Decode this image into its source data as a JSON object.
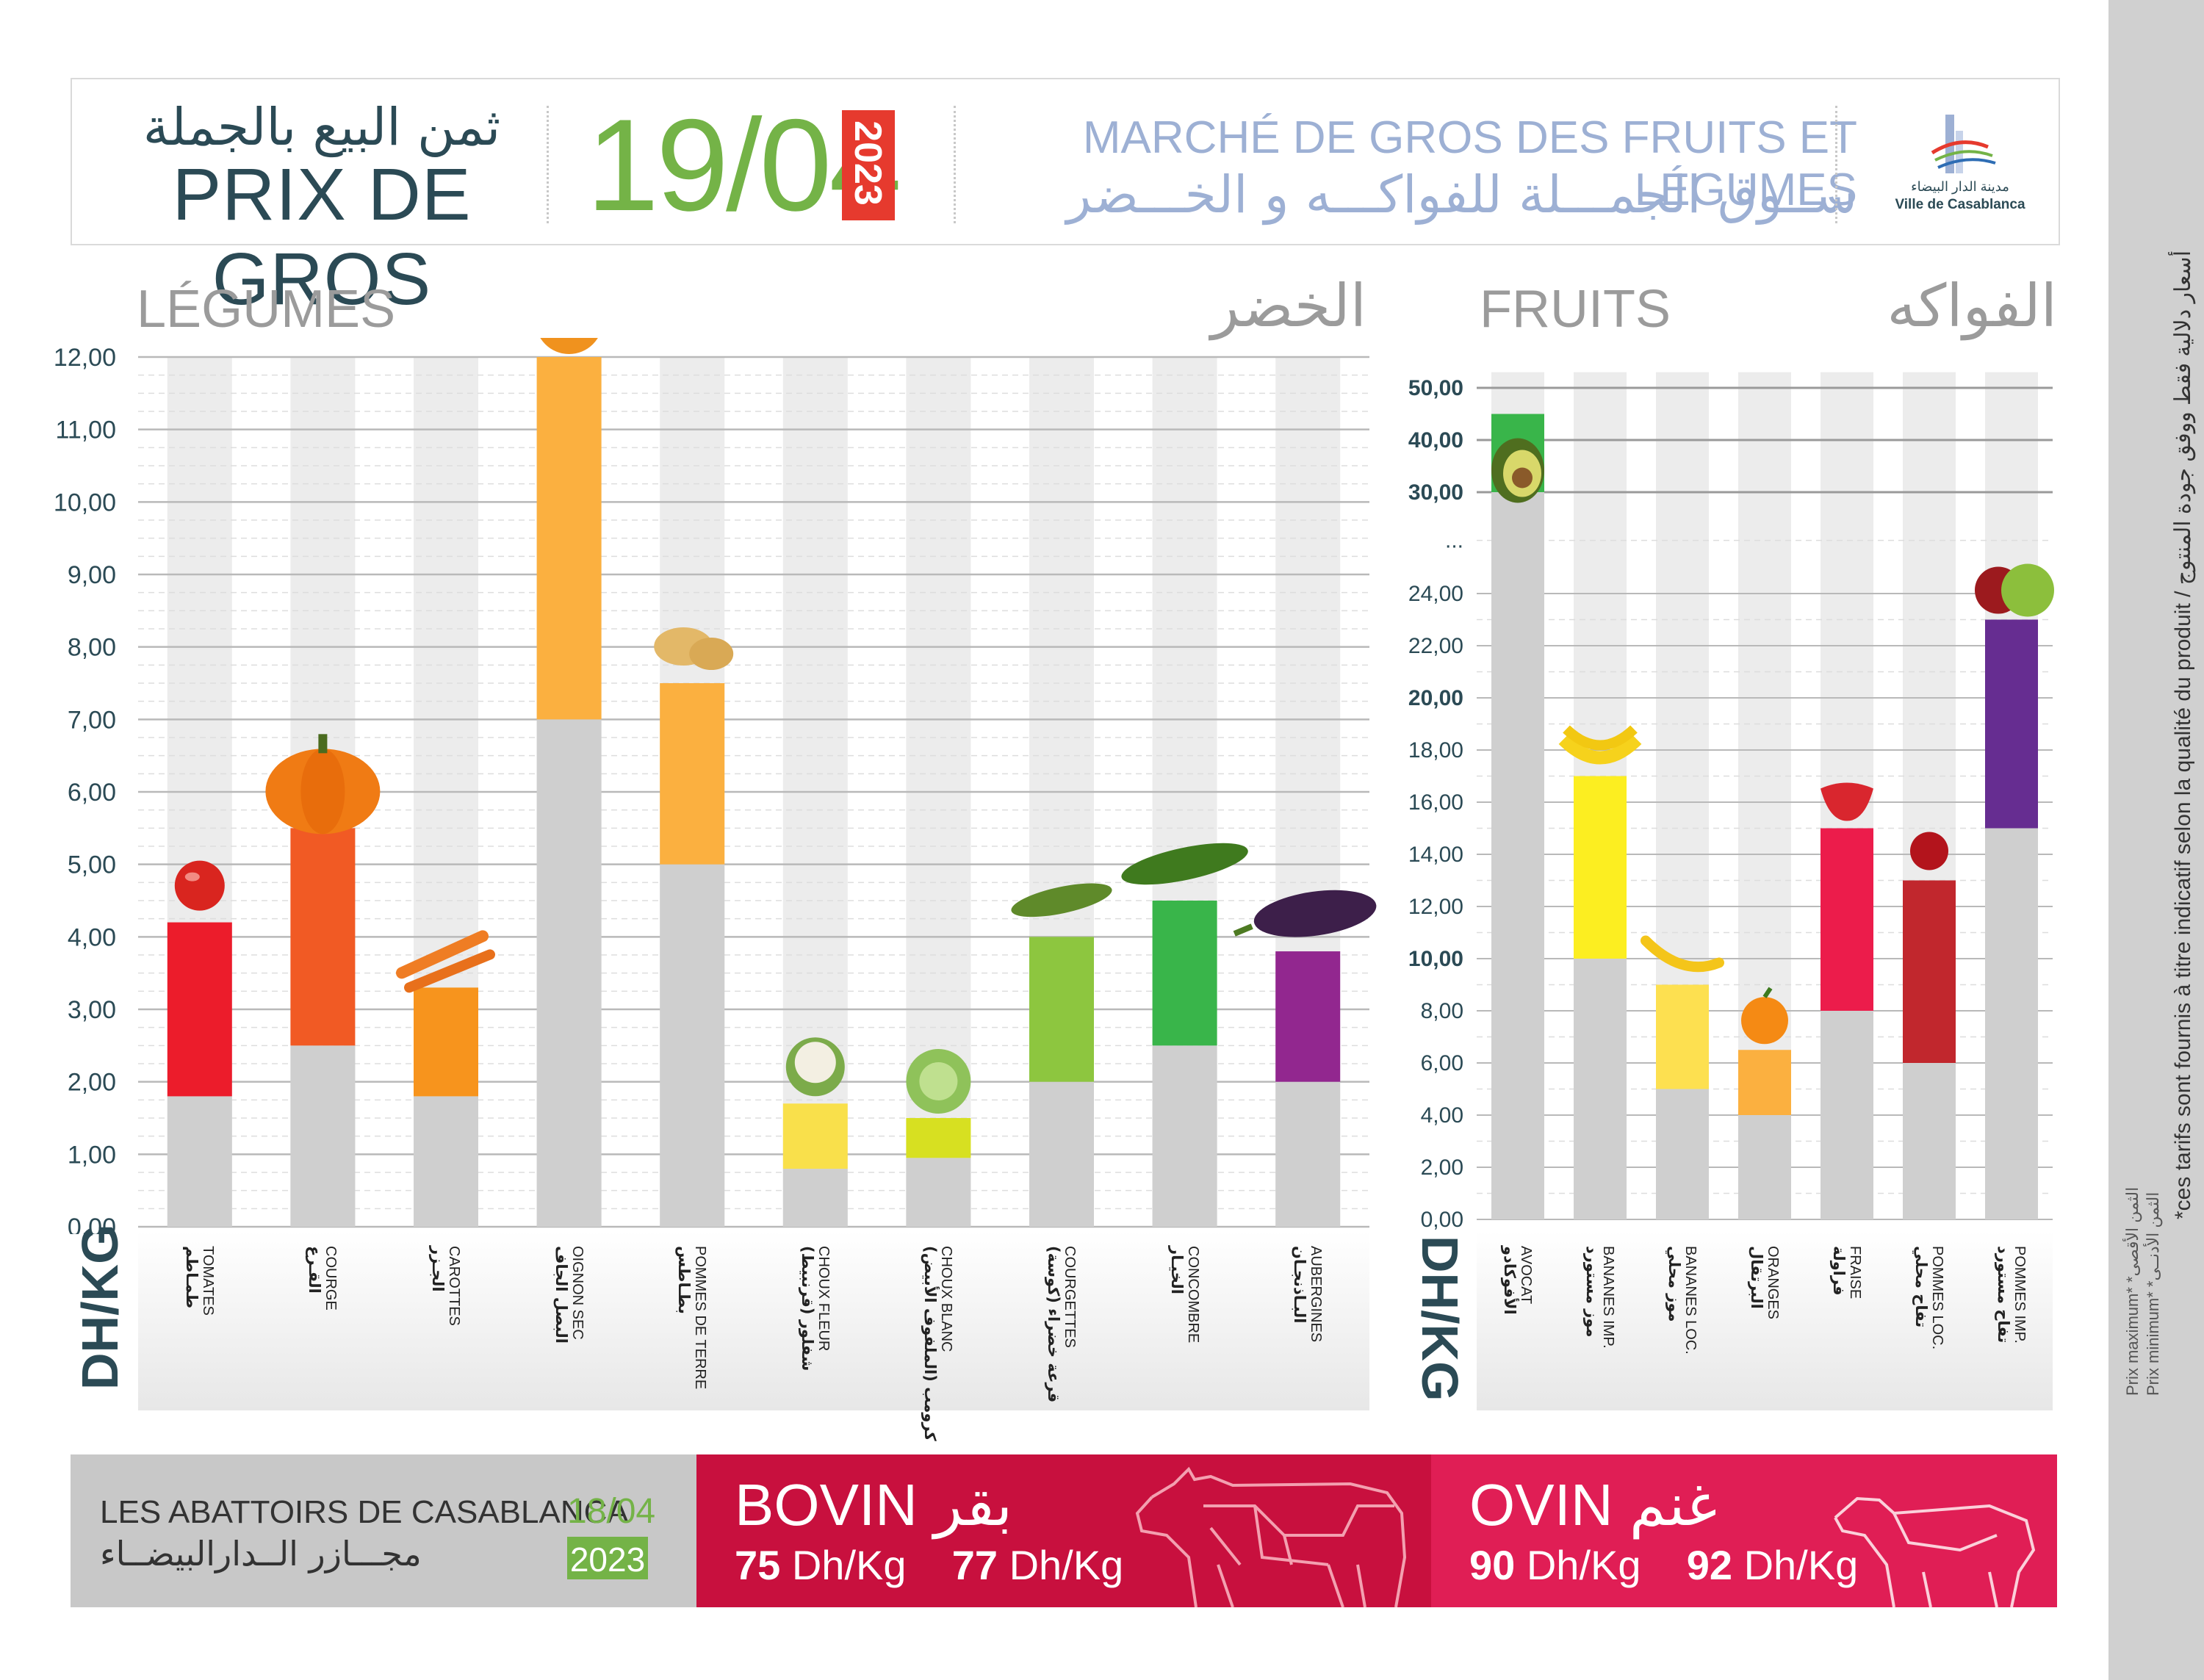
{
  "header": {
    "title_ar": "ثمن البيع بالجملة",
    "title_fr": "PRIX DE GROS",
    "date": "19/04",
    "year": "2023",
    "market_fr": "MARCHÉ DE GROS DES FRUITS ET LÉGUMES",
    "market_ar": "ســوق الجمـــلة للفواكـــه و الخـــضر",
    "logo_ar": "مدينة الدار البيضاء",
    "logo_fr": "Ville de Casablanca"
  },
  "legumes": {
    "title_fr": "LÉGUMES",
    "title_ar": "الخضر",
    "unit": "DH/KG"
  },
  "fruits": {
    "title_fr": "FRUITS",
    "title_ar": "الفواكه",
    "unit": "DH/KG"
  },
  "abattoirs": {
    "title_fr": "LES ABATTOIRS DE CASABLANCA",
    "title_ar": "مجـــازر الــدارالبيضــاء",
    "date": "18/04",
    "year": "2023"
  },
  "bovin": {
    "name_fr": "BOVIN",
    "name_ar": "بقر",
    "price_min_value": "75",
    "price_max_value": "77",
    "price_unit": "Dh/Kg"
  },
  "ovin": {
    "name_fr": "OVIN",
    "name_ar": "غنم",
    "price_min_value": "90",
    "price_max_value": "92",
    "price_unit": "Dh/Kg"
  },
  "side": {
    "note": "*ces tarifs sont fournis à titre indicatif selon la qualité du produit / أسعار دلالية فقط ووفق جودة المنتوج",
    "legend_max": "Prix maximum* *الثمن الأقصى",
    "legend_min": "Prix minimum* *الثمن الأدنــى"
  },
  "colors": {
    "min_bar": "#cfcfcf",
    "column_bg": "#ececec",
    "accent_green": "#74b347",
    "accent_red": "#e63a2e"
  },
  "chart_data": [
    {
      "type": "bar",
      "title": "LÉGUMES",
      "ylabel": "DH/KG",
      "ylim": [
        0,
        12
      ],
      "yticks": [
        "0,00",
        "1,00",
        "2,00",
        "3,00",
        "4,00",
        "5,00",
        "6,00",
        "7,00",
        "8,00",
        "9,00",
        "10,00",
        "11,00",
        "12,00"
      ],
      "categories": [
        {
          "fr": "TOMATES",
          "ar": "طمـاطم",
          "min": 1.8,
          "max": 4.2,
          "color": "#ec1c2b",
          "icon": "tomato-icon"
        },
        {
          "fr": "COURGE",
          "ar": "القـرع",
          "min": 2.5,
          "max": 5.5,
          "color": "#f15a24",
          "icon": "pumpkin-icon"
        },
        {
          "fr": "CAROTTES",
          "ar": "الجـزر",
          "min": 1.8,
          "max": 3.3,
          "color": "#f7941d",
          "icon": "carrot-icon"
        },
        {
          "fr": "OIGNON SEC",
          "ar": "البصل الجاف",
          "min": 7.0,
          "max": 12.0,
          "color": "#fbb040",
          "icon": "onion-icon"
        },
        {
          "fr": "POMMES DE TERRE",
          "ar": "بطـاطس",
          "min": 5.0,
          "max": 7.5,
          "color": "#fbb040",
          "icon": "potato-icon"
        },
        {
          "fr": "CHOUX FLEUR",
          "ar": "شفلور (قرنبيط)",
          "min": 0.8,
          "max": 1.7,
          "color": "#f9e04b",
          "icon": "cauliflower-icon"
        },
        {
          "fr": "CHOUX BLANC",
          "ar": "كرومب (الملفوف الأبيض)",
          "min": 0.95,
          "max": 1.5,
          "color": "#d7e021",
          "icon": "cabbage-icon"
        },
        {
          "fr": "COURGETTES",
          "ar": "قرعة خضراء (كوسة)",
          "min": 2.0,
          "max": 4.0,
          "color": "#8dc63f",
          "icon": "zucchini-icon"
        },
        {
          "fr": "CONCOMBRE",
          "ar": "الخيـار",
          "min": 2.5,
          "max": 4.5,
          "color": "#39b54a",
          "icon": "cucumber-icon"
        },
        {
          "fr": "AUBERGINES",
          "ar": "البـاذنجـان",
          "min": 2.0,
          "max": 3.8,
          "color": "#92278f",
          "icon": "eggplant-icon"
        }
      ]
    },
    {
      "type": "bar",
      "title": "FRUITS",
      "ylabel": "DH/KG",
      "ylim": [
        0,
        50
      ],
      "scale_break": "...",
      "yticks": [
        "0,00",
        "2,00",
        "4,00",
        "6,00",
        "8,00",
        "10,00",
        "12,00",
        "14,00",
        "16,00",
        "18,00",
        "20,00",
        "22,00",
        "24,00",
        "...",
        "30,00",
        "40,00",
        "50,00"
      ],
      "categories": [
        {
          "fr": "AVOCAT",
          "ar": "الأفوكادو",
          "min": 30,
          "max": 45,
          "color": "#39b54a",
          "icon": "avocado-icon"
        },
        {
          "fr": "BANANES IMP.",
          "ar": "موز مستورد",
          "min": 10,
          "max": 17,
          "color": "#fcee21",
          "icon": "banana-bunch-icon"
        },
        {
          "fr": "BANANES LOC.",
          "ar": "موز محلي",
          "min": 5,
          "max": 9,
          "color": "#fde050",
          "icon": "banana-icon"
        },
        {
          "fr": "ORANGES",
          "ar": "البرتقال",
          "min": 4,
          "max": 6.5,
          "color": "#fbb040",
          "icon": "orange-icon"
        },
        {
          "fr": "FRAISE",
          "ar": "فراولة",
          "min": 8,
          "max": 15,
          "color": "#ec1c4b",
          "icon": "strawberry-icon"
        },
        {
          "fr": "POMMES LOC.",
          "ar": "تفاح محلي",
          "min": 6,
          "max": 13,
          "color": "#c1272d",
          "icon": "apple-icon"
        },
        {
          "fr": "POMMES IMP.",
          "ar": "تفاح مستورد",
          "min": 15,
          "max": 23,
          "color": "#662d91",
          "icon": "apples-icon"
        }
      ]
    }
  ]
}
